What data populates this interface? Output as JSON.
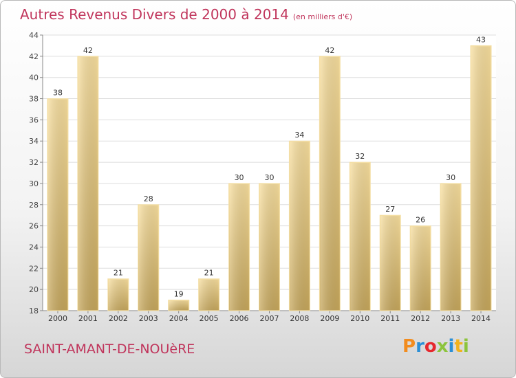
{
  "header": {
    "title": "Autres Revenus Divers de 2000 à 2014",
    "unit": "(en milliers d'€)"
  },
  "footer": {
    "commune": "SAINT-AMANT-DE-NOUèRE",
    "logo": "Proxiti",
    "logo_letters": [
      "P",
      "r",
      "o",
      "x",
      "i",
      "t",
      "i"
    ]
  },
  "colors": {
    "title": "#c0345b",
    "bar_light": "#f6dc9a",
    "bar_dark": "#c9aa5e",
    "grid": "#dcdcdc"
  },
  "chart_data": {
    "type": "bar",
    "title": "Autres Revenus Divers de 2000 à 2014",
    "xlabel": "",
    "ylabel": "",
    "categories": [
      "2000",
      "2001",
      "2002",
      "2003",
      "2004",
      "2005",
      "2006",
      "2007",
      "2008",
      "2009",
      "2010",
      "2011",
      "2012",
      "2013",
      "2014"
    ],
    "values": [
      38,
      42,
      21,
      28,
      19,
      21,
      30,
      30,
      34,
      42,
      32,
      27,
      26,
      30,
      43
    ],
    "ylim": [
      18,
      44
    ],
    "yticks": [
      18,
      20,
      22,
      24,
      26,
      28,
      30,
      32,
      34,
      36,
      38,
      40,
      42,
      44
    ],
    "grid": true,
    "legend": "none"
  }
}
